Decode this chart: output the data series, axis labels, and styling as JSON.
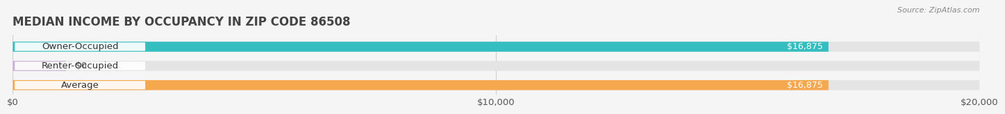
{
  "title": "MEDIAN INCOME BY OCCUPANCY IN ZIP CODE 86508",
  "source": "Source: ZipAtlas.com",
  "categories": [
    "Owner-Occupied",
    "Renter-Occupied",
    "Average"
  ],
  "values": [
    16875,
    0,
    16875
  ],
  "bar_colors": [
    "#35bec0",
    "#c8afd4",
    "#f5a84d"
  ],
  "xlim": [
    0,
    20000
  ],
  "xticks": [
    0,
    10000,
    20000
  ],
  "xticklabels": [
    "$0",
    "$10,000",
    "$20,000"
  ],
  "label_fontsize": 9.5,
  "title_fontsize": 12,
  "value_label_fontsize": 9,
  "background_color": "#f5f5f5",
  "bar_bg_color": "#e4e4e4",
  "bar_bg_light": "#ebebeb",
  "grid_color": "#d0d0d0",
  "text_color": "#555555"
}
